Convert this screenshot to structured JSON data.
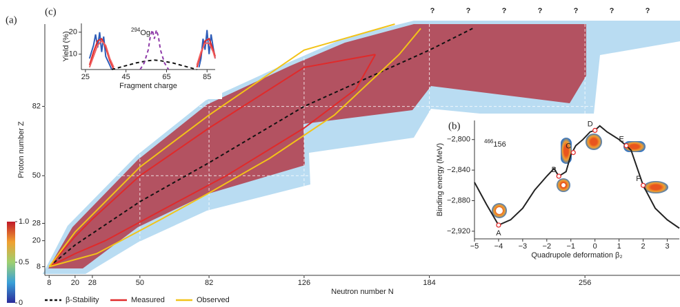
{
  "chart_data": [
    {
      "type": "line",
      "panel": "(a)",
      "x_label": "Neutron number N",
      "y_label": "Proton number Z",
      "xlim": [
        6,
        300
      ],
      "ylim": [
        4,
        120
      ],
      "xticks": [
        8,
        20,
        28,
        50,
        82,
        126,
        184,
        256
      ],
      "yticks": [
        8,
        20,
        28,
        50,
        82
      ],
      "grid": true,
      "series": [
        {
          "name": "β-Stability",
          "color": "#111111",
          "dash": true,
          "x": [
            8,
            20,
            50,
            82,
            126,
            184,
            204
          ],
          "values": [
            8,
            18,
            38,
            56,
            82,
            108,
            118
          ]
        },
        {
          "name": "Measured",
          "color": "#e02a2a",
          "dash": false,
          "x": [
            8,
            20,
            28,
            50,
            82,
            126,
            159,
            null,
            8,
            20,
            34,
            60,
            90,
            126,
            150,
            159
          ],
          "values": [
            8,
            22,
            30,
            50,
            72,
            100,
            106,
            null,
            8,
            14,
            20,
            34,
            50,
            72,
            90,
            106
          ]
        },
        {
          "name": "Observed",
          "color": "#f2c318",
          "dash": false,
          "x": [
            8,
            20,
            50,
            82,
            126,
            168,
            null,
            8,
            30,
            60,
            82,
            110,
            140,
            170,
            180
          ],
          "values": [
            8,
            24,
            54,
            78,
            108,
            120,
            null,
            8,
            14,
            30,
            42,
            58,
            78,
            106,
            118
          ]
        }
      ],
      "annotations": [
        "?",
        "?",
        "?",
        "?",
        "?",
        "?",
        "?"
      ],
      "colorbar": {
        "lim": [
          0,
          1
        ],
        "ticks": [
          0,
          0.5,
          {
            "value": 1,
            "label": "1.0"
          }
        ]
      }
    },
    {
      "type": "line",
      "panel": "(c)",
      "x_label": "Fragment charge",
      "y_label": "Yield (%)",
      "xlim": [
        23,
        89
      ],
      "ylim": [
        3,
        24
      ],
      "xticks": [
        25,
        45,
        65,
        85
      ],
      "yticks": [
        10,
        20
      ],
      "nucleus": {
        "mass": "294",
        "symbol": "Og"
      },
      "series": [
        {
          "color": "#2f5db8",
          "dash": false,
          "x": [
            27,
            29,
            30,
            31,
            32,
            33,
            34,
            35,
            36,
            37,
            38,
            null,
            81,
            82,
            83,
            84,
            85,
            86,
            87,
            88,
            89
          ],
          "values": [
            8,
            14,
            19,
            13,
            20,
            11,
            18,
            9,
            7,
            5,
            3,
            null,
            4,
            8,
            17,
            12,
            21,
            10,
            19,
            13,
            8
          ]
        },
        {
          "color": "#e02a2a",
          "dash": false,
          "x": [
            27,
            29,
            31,
            33,
            35,
            37,
            39,
            null,
            80,
            82,
            84,
            86,
            88,
            89
          ],
          "values": [
            5,
            11,
            16,
            17,
            13,
            7,
            3,
            null,
            4,
            10,
            16,
            17,
            12,
            9
          ]
        },
        {
          "color": "#f06060",
          "dash": false,
          "x": [
            27,
            29,
            31,
            33,
            35,
            37,
            39,
            null,
            80,
            82,
            84,
            86,
            88,
            89
          ],
          "values": [
            4,
            9,
            14,
            16,
            14,
            8,
            4,
            null,
            5,
            11,
            15,
            15,
            11,
            8
          ]
        },
        {
          "color": "#111111",
          "dash": true,
          "x": [
            38,
            44,
            50,
            56,
            59,
            62,
            68,
            74,
            80
          ],
          "values": [
            3,
            4.5,
            6,
            7,
            7.3,
            7,
            6,
            4.5,
            3
          ]
        },
        {
          "color": "#8e3aa8",
          "dash": true,
          "x": [
            52,
            54,
            56,
            57,
            58,
            59,
            60,
            61,
            62,
            64,
            66
          ],
          "values": [
            3,
            6,
            12,
            18,
            21,
            17,
            21,
            18,
            12,
            6,
            3
          ]
        }
      ]
    },
    {
      "type": "line",
      "panel": "(b)",
      "x_label": "Quadrupole deformation β₂",
      "y_label": "Binding  energy (MeV)",
      "xlim": [
        -5,
        3.5
      ],
      "ylim": [
        -2930,
        -2775
      ],
      "xticks": [
        {
          "value": -5,
          "label": "−5"
        },
        {
          "value": -4,
          "label": "−4"
        },
        {
          "value": -3,
          "label": "−3"
        },
        {
          "value": -2,
          "label": "−2"
        },
        {
          "value": -1,
          "label": "−1"
        },
        0,
        1,
        2,
        3
      ],
      "yticks": [
        {
          "value": -2800,
          "label": "−2,800"
        },
        {
          "value": -2840,
          "label": "−2,840"
        },
        {
          "value": -2880,
          "label": "−2,880"
        },
        {
          "value": -2920,
          "label": "−2,920"
        }
      ],
      "nucleus": {
        "mass": "466",
        "z": "156"
      },
      "series": [
        {
          "color": "#222222",
          "dash": false,
          "x": [
            -5,
            -4.5,
            -4,
            -3.5,
            -3,
            -2.5,
            -2,
            -1.7,
            -1.5,
            -1.2,
            -1,
            -0.8,
            -0.5,
            -0.2,
            0,
            0.2,
            0.5,
            1,
            1.3,
            1.5,
            2,
            2.5,
            3,
            3.5
          ],
          "values": [
            -2856,
            -2885,
            -2912,
            -2905,
            -2890,
            -2866,
            -2848,
            -2838,
            -2848,
            -2842,
            -2820,
            -2808,
            -2800,
            -2790,
            -2788,
            -2782,
            -2790,
            -2800,
            -2808,
            -2814,
            -2860,
            -2890,
            -2905,
            -2916
          ]
        }
      ],
      "points": [
        {
          "label": "A",
          "x": -4,
          "y": -2912
        },
        {
          "label": "B",
          "x": -1.5,
          "y": -2848
        },
        {
          "label": "C",
          "x": -0.9,
          "y": -2817
        },
        {
          "label": "D",
          "x": 0,
          "y": -2788
        },
        {
          "label": "E",
          "x": 1.3,
          "y": -2808
        },
        {
          "label": "F",
          "x": 2,
          "y": -2860
        }
      ]
    }
  ]
}
